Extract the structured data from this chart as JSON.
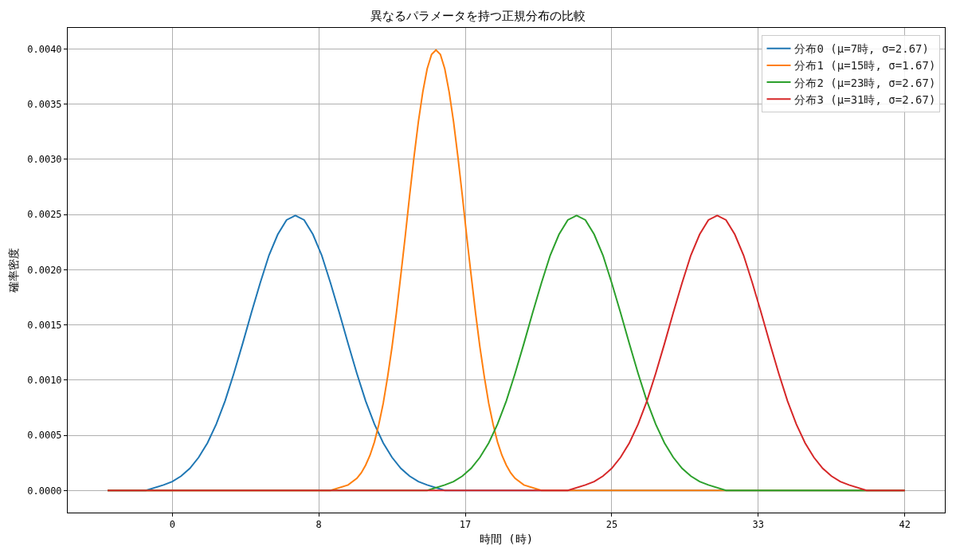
{
  "chart_data": {
    "type": "line",
    "title": "異なるパラメータを持つ正規分布の比較",
    "xlabel": "時間 (時)",
    "ylabel": "確率密度",
    "xlim": [
      -5.95,
      43.95
    ],
    "ylim": [
      -0.0002,
      0.00419
    ],
    "xticks": [
      0,
      {
        "value": 8.33,
        "label": "8"
      },
      {
        "value": 16.67,
        "label": "17"
      },
      25,
      {
        "value": 33.33,
        "label": "33"
      },
      {
        "value": 41.67,
        "label": "42"
      }
    ],
    "yticks": [
      {
        "value": 0,
        "label": "0.0000"
      },
      {
        "value": 0.0005,
        "label": "0.0005"
      },
      {
        "value": 0.001,
        "label": "0.0010"
      },
      {
        "value": 0.0015,
        "label": "0.0015"
      },
      {
        "value": 0.002,
        "label": "0.0020"
      },
      {
        "value": 0.0025,
        "label": "0.0025"
      },
      {
        "value": 0.003,
        "label": "0.0030"
      },
      {
        "value": 0.0035,
        "label": "0.0035"
      },
      {
        "value": 0.004,
        "label": "0.0040"
      }
    ],
    "grid": true,
    "legend": "top right",
    "series": [
      {
        "name": "分布0 (μ=7時, σ=2.67)",
        "color": "#1f77b4",
        "x": [
          -3.68,
          -1.5,
          -0.5,
          0,
          0.5,
          1,
          1.5,
          2,
          2.5,
          3,
          3.5,
          4,
          4.5,
          5,
          5.5,
          6,
          6.5,
          7,
          7.5,
          8,
          8.5,
          9,
          9.5,
          10,
          10.5,
          11,
          11.5,
          12,
          12.5,
          13,
          13.5,
          14,
          14.5,
          15.5,
          41.68
        ],
        "values": [
          0,
          0,
          5e-05,
          8e-05,
          0.00013,
          0.0002,
          0.0003,
          0.00043,
          0.0006,
          0.00081,
          0.00106,
          0.00133,
          0.00161,
          0.00188,
          0.00213,
          0.00232,
          0.00245,
          0.00249,
          0.00245,
          0.00232,
          0.00213,
          0.00188,
          0.00161,
          0.00133,
          0.00106,
          0.00081,
          0.0006,
          0.00043,
          0.0003,
          0.0002,
          0.00013,
          8e-05,
          5e-05,
          0,
          0
        ]
      },
      {
        "name": "分布1 (μ=15時, σ=1.67)",
        "color": "#ff7f0e",
        "x": [
          -3.68,
          9,
          10,
          10.5,
          10.75,
          11,
          11.25,
          11.5,
          11.75,
          12,
          12.25,
          12.5,
          12.75,
          13,
          13.25,
          13.5,
          13.75,
          14,
          14.25,
          14.5,
          14.75,
          15,
          15.25,
          15.5,
          15.75,
          16,
          16.25,
          16.5,
          16.75,
          17,
          17.25,
          17.5,
          17.75,
          18,
          18.25,
          18.5,
          18.75,
          19,
          19.25,
          19.5,
          20,
          21,
          41.68
        ],
        "values": [
          0,
          0,
          5e-05,
          0.00011,
          0.00016,
          0.00023,
          0.00032,
          0.00044,
          0.0006,
          0.00079,
          0.00103,
          0.0013,
          0.00161,
          0.00195,
          0.0023,
          0.00267,
          0.00302,
          0.00334,
          0.00361,
          0.00382,
          0.00395,
          0.00399,
          0.00395,
          0.00382,
          0.00361,
          0.00334,
          0.00302,
          0.00267,
          0.0023,
          0.00195,
          0.00161,
          0.0013,
          0.00103,
          0.00079,
          0.0006,
          0.00044,
          0.00032,
          0.00023,
          0.00016,
          0.00011,
          5e-05,
          0,
          0
        ]
      },
      {
        "name": "分布2 (μ=23時, σ=2.67)",
        "color": "#2ca02c",
        "x": [
          -3.68,
          14.5,
          15.5,
          16,
          16.5,
          17,
          17.5,
          18,
          18.5,
          19,
          19.5,
          20,
          20.5,
          21,
          21.5,
          22,
          22.5,
          23,
          23.5,
          24,
          24.5,
          25,
          25.5,
          26,
          26.5,
          27,
          27.5,
          28,
          28.5,
          29,
          29.5,
          30,
          30.5,
          31.5,
          41.68
        ],
        "values": [
          0,
          0,
          5e-05,
          8e-05,
          0.00013,
          0.0002,
          0.0003,
          0.00043,
          0.0006,
          0.00081,
          0.00106,
          0.00133,
          0.00161,
          0.00188,
          0.00213,
          0.00232,
          0.00245,
          0.00249,
          0.00245,
          0.00232,
          0.00213,
          0.00188,
          0.00161,
          0.00133,
          0.00106,
          0.00081,
          0.0006,
          0.00043,
          0.0003,
          0.0002,
          0.00013,
          8e-05,
          5e-05,
          0,
          0
        ]
      },
      {
        "name": "分布3 (μ=31時, σ=2.67)",
        "color": "#d62728",
        "x": [
          -3.68,
          22.5,
          23.5,
          24,
          24.5,
          25,
          25.5,
          26,
          26.5,
          27,
          27.5,
          28,
          28.5,
          29,
          29.5,
          30,
          30.5,
          31,
          31.5,
          32,
          32.5,
          33,
          33.5,
          34,
          34.5,
          35,
          35.5,
          36,
          36.5,
          37,
          37.5,
          38,
          38.5,
          39.5,
          41.68
        ],
        "values": [
          0,
          0,
          5e-05,
          8e-05,
          0.00013,
          0.0002,
          0.0003,
          0.00043,
          0.0006,
          0.00081,
          0.00106,
          0.00133,
          0.00161,
          0.00188,
          0.00213,
          0.00232,
          0.00245,
          0.00249,
          0.00245,
          0.00232,
          0.00213,
          0.00188,
          0.00161,
          0.00133,
          0.00106,
          0.00081,
          0.0006,
          0.00043,
          0.0003,
          0.0002,
          0.00013,
          8e-05,
          5e-05,
          0,
          0
        ]
      }
    ]
  }
}
